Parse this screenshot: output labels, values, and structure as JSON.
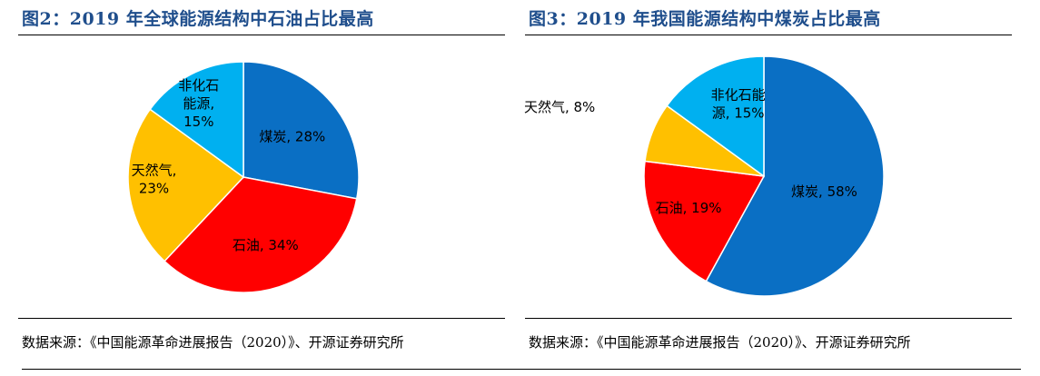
{
  "chart_data": [
    {
      "type": "pie",
      "title": "图2：2019 年全球能源结构中石油占比最高",
      "source": "数据来源：《中国能源革命进展报告（2020）》、开源证券研究所",
      "slices": [
        {
          "label": "煤炭",
          "value": 28,
          "display": [
            "煤炭, 28%"
          ],
          "color": "#0a6fc4"
        },
        {
          "label": "石油",
          "value": 34,
          "display": [
            "石油, 34%"
          ],
          "color": "#ff0000"
        },
        {
          "label": "天然气",
          "value": 23,
          "display": [
            "天然气,",
            "23%"
          ],
          "color": "#ffc000"
        },
        {
          "label": "非化石能源",
          "value": 15,
          "display": [
            "非化石",
            "能源,",
            "15%"
          ],
          "color": "#00b0f0"
        }
      ]
    },
    {
      "type": "pie",
      "title": "图3：2019 年我国能源结构中煤炭占比最高",
      "source": "数据来源：《中国能源革命进展报告（2020）》、开源证券研究所",
      "slices": [
        {
          "label": "煤炭",
          "value": 58,
          "display": [
            "煤炭, 58%"
          ],
          "color": "#0a6fc4"
        },
        {
          "label": "石油",
          "value": 19,
          "display": [
            "石油, 19%"
          ],
          "color": "#ff0000"
        },
        {
          "label": "天然气",
          "value": 8,
          "display": [
            "天然气, 8%"
          ],
          "color": "#ffc000"
        },
        {
          "label": "非化石能源",
          "value": 15,
          "display": [
            "非化石能",
            "源, 15%"
          ],
          "color": "#00b0f0"
        }
      ]
    }
  ]
}
